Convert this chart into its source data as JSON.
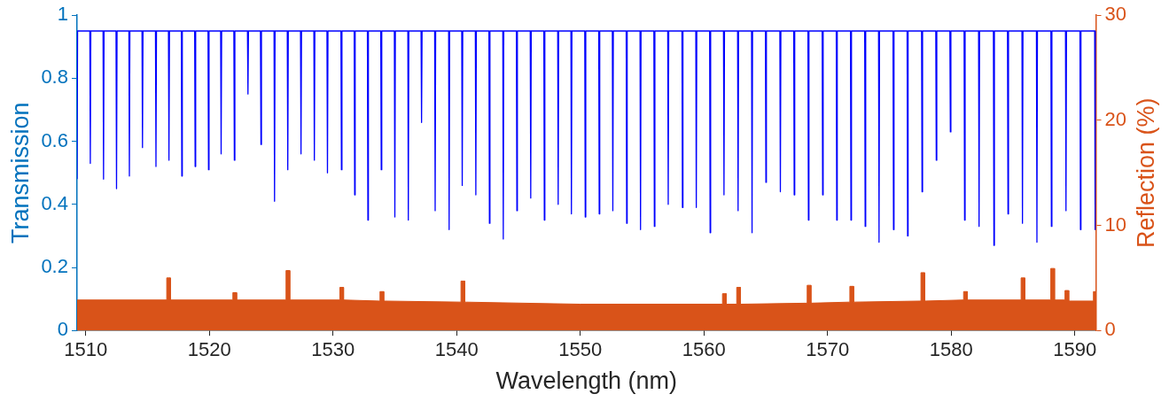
{
  "chart_data": {
    "type": "line",
    "xlabel": "Wavelength (nm)",
    "ylabel": "Transmission",
    "y2label": "Reflection (%)",
    "xlim": [
      1509.3,
      1591.7
    ],
    "xticks": [
      1510,
      1520,
      1530,
      1540,
      1550,
      1560,
      1570,
      1580,
      1590
    ],
    "ylim": [
      0,
      1
    ],
    "yticks": [
      0,
      0.2,
      0.4,
      0.6,
      0.8,
      1
    ],
    "y2lim": [
      0,
      30
    ],
    "y2ticks": [
      0,
      10,
      20,
      30
    ],
    "series": [
      {
        "type": "area",
        "axis": "y2",
        "color": "#d95319",
        "x": [
          1509.3,
          1516.55,
          1516.55,
          1516.85,
          1516.85,
          1521.9,
          1521.9,
          1522.2,
          1522.2,
          1526.2,
          1526.2,
          1526.5,
          1526.5,
          1530.55,
          1530.55,
          1530.85,
          1530.85,
          1533.8,
          1533.8,
          1534.1,
          1534.1,
          1540.35,
          1540.35,
          1540.65,
          1540.65,
          1550,
          1561.5,
          1561.5,
          1561.8,
          1561.8,
          1562.65,
          1562.65,
          1562.95,
          1562.95,
          1568.35,
          1568.35,
          1568.65,
          1568.65,
          1571.8,
          1571.8,
          1572.1,
          1572.1,
          1577.55,
          1577.55,
          1577.85,
          1577.85,
          1581,
          1581,
          1581.3,
          1581.3,
          1585.65,
          1585.65,
          1585.95,
          1585.95,
          1588.05,
          1588.05,
          1588.35,
          1588.35,
          1589.2,
          1589.2,
          1589.5,
          1589.5,
          1591.5,
          1591.5,
          1591.7
        ],
        "values": [
          2.9,
          2.9,
          5.0,
          5.0,
          2.9,
          2.9,
          3.6,
          3.6,
          2.9,
          2.9,
          5.7,
          5.7,
          2.9,
          2.9,
          4.1,
          4.1,
          2.9,
          2.8,
          3.7,
          3.7,
          2.8,
          2.7,
          4.7,
          4.7,
          2.7,
          2.5,
          2.5,
          3.5,
          3.5,
          2.5,
          2.5,
          4.1,
          4.1,
          2.5,
          2.6,
          4.3,
          4.3,
          2.6,
          2.7,
          4.2,
          4.2,
          2.7,
          2.8,
          5.5,
          5.5,
          2.8,
          2.9,
          3.7,
          3.7,
          2.9,
          2.9,
          5.0,
          5.0,
          2.9,
          2.9,
          5.9,
          5.9,
          2.9,
          2.9,
          3.8,
          3.8,
          2.8,
          2.8,
          3.7,
          3.7
        ]
      },
      {
        "axis": "y",
        "color": "#0000ff",
        "x": [
          1509.3,
          1509.34,
          1510.33,
          1510.37,
          1510.41,
          1511.4,
          1511.44,
          1511.48,
          1512.45,
          1512.49,
          1512.53,
          1513.49,
          1513.53,
          1513.57,
          1514.55,
          1514.59,
          1514.63,
          1515.64,
          1515.68,
          1515.72,
          1516.69,
          1516.73,
          1516.77,
          1517.73,
          1517.77,
          1517.81,
          1518.81,
          1518.85,
          1518.89,
          1519.89,
          1519.93,
          1519.97,
          1520.91,
          1520.95,
          1520.99,
          1521.98,
          1522.02,
          1522.06,
          1523.08,
          1523.12,
          1523.16,
          1524.13,
          1524.17,
          1524.21,
          1525.23,
          1525.27,
          1525.31,
          1526.3,
          1526.34,
          1526.38,
          1527.37,
          1527.41,
          1527.45,
          1528.45,
          1528.49,
          1528.53,
          1529.51,
          1529.55,
          1529.59,
          1530.64,
          1530.68,
          1530.72,
          1531.71,
          1531.75,
          1531.79,
          1532.78,
          1532.82,
          1532.86,
          1533.86,
          1533.9,
          1533.94,
          1534.96,
          1535,
          1535.04,
          1536.05,
          1536.09,
          1536.13,
          1537.12,
          1537.16,
          1537.2,
          1538.22,
          1538.26,
          1538.3,
          1539.35,
          1539.39,
          1539.43,
          1540.41,
          1540.45,
          1540.49,
          1541.51,
          1541.55,
          1541.59,
          1542.61,
          1542.65,
          1542.69,
          1543.73,
          1543.77,
          1543.81,
          1544.83,
          1544.87,
          1544.91,
          1545.95,
          1545.99,
          1546.03,
          1547.05,
          1547.09,
          1547.13,
          1548.17,
          1548.21,
          1548.25,
          1549.24,
          1549.28,
          1549.32,
          1550.36,
          1550.4,
          1550.44,
          1551.49,
          1551.53,
          1551.57,
          1552.59,
          1552.63,
          1552.67,
          1553.71,
          1553.75,
          1553.79,
          1554.83,
          1554.87,
          1554.91,
          1555.95,
          1555.99,
          1556.03,
          1557.07,
          1557.11,
          1557.15,
          1558.22,
          1558.26,
          1558.3,
          1559.34,
          1559.38,
          1559.42,
          1560.46,
          1560.5,
          1560.54,
          1561.58,
          1561.62,
          1561.66,
          1562.72,
          1562.76,
          1562.8,
          1563.85,
          1563.89,
          1563.93,
          1564.97,
          1565.01,
          1565.05,
          1566.14,
          1566.18,
          1566.22,
          1567.26,
          1567.3,
          1567.34,
          1568.41,
          1568.45,
          1568.49,
          1569.56,
          1569.6,
          1569.64,
          1570.7,
          1570.74,
          1570.78,
          1571.85,
          1571.89,
          1571.93,
          1573,
          1573.04,
          1573.08,
          1574.12,
          1574.16,
          1574.2,
          1575.29,
          1575.33,
          1575.37,
          1576.43,
          1576.47,
          1576.51,
          1577.6,
          1577.64,
          1577.68,
          1578.75,
          1578.79,
          1578.83,
          1579.89,
          1579.93,
          1579.97,
          1581.04,
          1581.08,
          1581.12,
          1582.21,
          1582.25,
          1582.29,
          1583.41,
          1583.45,
          1583.49,
          1584.55,
          1584.59,
          1584.63,
          1585.72,
          1585.76,
          1585.8,
          1586.89,
          1586.93,
          1586.97,
          1588.06,
          1588.1,
          1588.14,
          1589.24,
          1589.28,
          1589.32,
          1590.41,
          1590.45,
          1590.49,
          1591.6,
          1591.64,
          1591.68
        ],
        "values": [
          0.48,
          0.95,
          0.95,
          0.53,
          0.95,
          0.95,
          0.48,
          0.95,
          0.95,
          0.45,
          0.95,
          0.95,
          0.49,
          0.95,
          0.95,
          0.58,
          0.95,
          0.95,
          0.52,
          0.95,
          0.95,
          0.54,
          0.95,
          0.95,
          0.49,
          0.95,
          0.95,
          0.52,
          0.95,
          0.95,
          0.51,
          0.95,
          0.95,
          0.56,
          0.95,
          0.95,
          0.54,
          0.95,
          0.95,
          0.75,
          0.95,
          0.95,
          0.59,
          0.95,
          0.95,
          0.41,
          0.95,
          0.95,
          0.51,
          0.95,
          0.95,
          0.56,
          0.95,
          0.95,
          0.54,
          0.95,
          0.95,
          0.5,
          0.95,
          0.95,
          0.51,
          0.95,
          0.95,
          0.43,
          0.95,
          0.95,
          0.35,
          0.95,
          0.95,
          0.51,
          0.95,
          0.95,
          0.36,
          0.95,
          0.95,
          0.35,
          0.95,
          0.95,
          0.66,
          0.95,
          0.95,
          0.38,
          0.95,
          0.95,
          0.32,
          0.95,
          0.95,
          0.46,
          0.95,
          0.95,
          0.43,
          0.95,
          0.95,
          0.34,
          0.95,
          0.95,
          0.29,
          0.95,
          0.95,
          0.38,
          0.95,
          0.95,
          0.42,
          0.95,
          0.95,
          0.35,
          0.95,
          0.95,
          0.4,
          0.95,
          0.95,
          0.37,
          0.95,
          0.95,
          0.36,
          0.95,
          0.95,
          0.37,
          0.95,
          0.95,
          0.38,
          0.95,
          0.95,
          0.34,
          0.95,
          0.95,
          0.32,
          0.95,
          0.95,
          0.33,
          0.95,
          0.95,
          0.4,
          0.95,
          0.95,
          0.39,
          0.95,
          0.95,
          0.39,
          0.95,
          0.95,
          0.31,
          0.95,
          0.95,
          0.43,
          0.95,
          0.95,
          0.38,
          0.95,
          0.95,
          0.31,
          0.95,
          0.95,
          0.47,
          0.95,
          0.95,
          0.44,
          0.95,
          0.95,
          0.43,
          0.95,
          0.95,
          0.35,
          0.95,
          0.95,
          0.43,
          0.95,
          0.95,
          0.35,
          0.95,
          0.95,
          0.35,
          0.95,
          0.95,
          0.33,
          0.95,
          0.95,
          0.28,
          0.95,
          0.95,
          0.32,
          0.95,
          0.95,
          0.3,
          0.95,
          0.95,
          0.44,
          0.95,
          0.95,
          0.54,
          0.95,
          0.95,
          0.63,
          0.95,
          0.95,
          0.35,
          0.95,
          0.95,
          0.33,
          0.95,
          0.95,
          0.27,
          0.95,
          0.95,
          0.37,
          0.95,
          0.95,
          0.34,
          0.95,
          0.95,
          0.28,
          0.95,
          0.95,
          0.33,
          0.95,
          0.95,
          0.38,
          0.95,
          0.95,
          0.32,
          0.95,
          0.95,
          0.32,
          0.95
        ]
      }
    ]
  }
}
